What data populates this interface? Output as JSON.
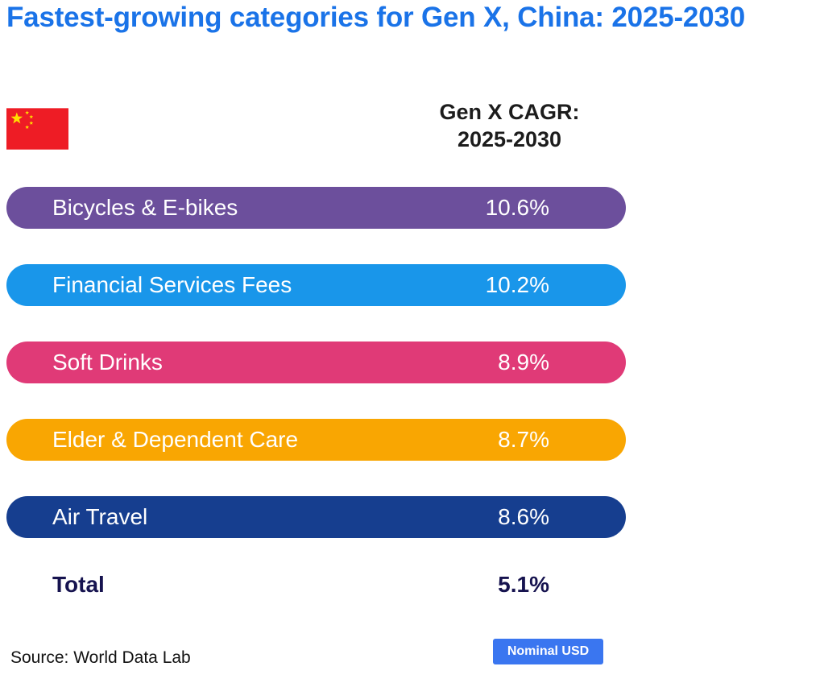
{
  "title": "Fastest-growing categories for Gen X, China: 2025-2030",
  "column_header": {
    "line1": "Gen X CAGR:",
    "line2": "2025-2030"
  },
  "flag_icon": "china-flag-icon",
  "chart_data": {
    "type": "table",
    "title": "Fastest-growing categories for Gen X, China: 2025-2030",
    "column_header": "Gen X CAGR: 2025-2030",
    "unit": "%",
    "rows": [
      {
        "label": "Bicycles & E-bikes",
        "value": 10.6,
        "display": "10.6%",
        "color": "#6c4f9c"
      },
      {
        "label": "Financial Services Fees",
        "value": 10.2,
        "display": "10.2%",
        "color": "#1996ea"
      },
      {
        "label": "Soft Drinks",
        "value": 8.9,
        "display": "8.9%",
        "color": "#e03a77"
      },
      {
        "label": "Elder & Dependent Care",
        "value": 8.7,
        "display": "8.7%",
        "color": "#f9a602"
      },
      {
        "label": "Air Travel",
        "value": 8.6,
        "display": "8.6%",
        "color": "#163e8f"
      }
    ],
    "total": {
      "label": "Total",
      "value": 5.1,
      "display": "5.1%"
    }
  },
  "footer": {
    "source": "Source: World Data Lab",
    "badge": "Nominal USD",
    "badge_color": "#3a76f0"
  },
  "colors": {
    "title": "#1a73e8",
    "flag_red": "#ee1c25",
    "flag_star": "#ffde00",
    "total_text": "#16134f"
  }
}
